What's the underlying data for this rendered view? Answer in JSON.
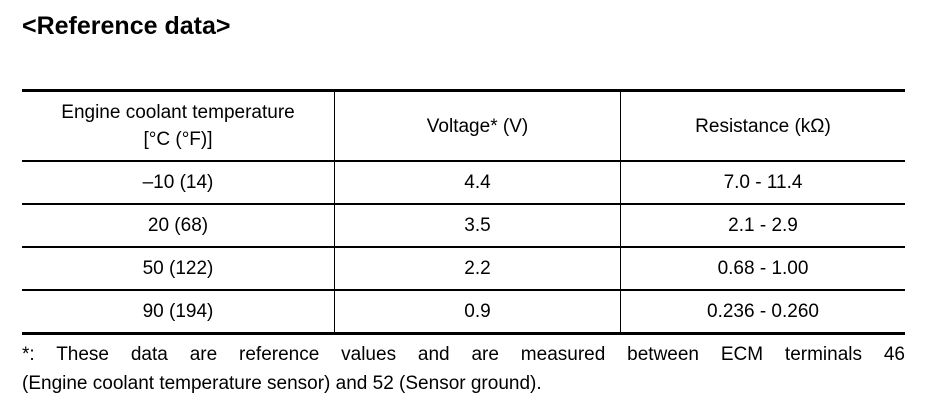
{
  "title": "<Reference data>",
  "table": {
    "header": [
      [
        "Engine coolant temperature",
        "[°C (°F)]"
      ],
      "Voltage* (V)",
      "Resistance (kΩ)"
    ],
    "rows": [
      [
        "–10 (14)",
        "4.4",
        "7.0 - 11.4"
      ],
      [
        "20 (68)",
        "3.5",
        "2.1 - 2.9"
      ],
      [
        "50 (122)",
        "2.2",
        "0.68 - 1.00"
      ],
      [
        "90 (194)",
        "0.9",
        "0.236 - 0.260"
      ]
    ]
  },
  "footnote": [
    "*: These data are reference values and are measured between ECM terminals 46",
    "(Engine coolant temperature sensor) and 52 (Sensor ground)."
  ]
}
